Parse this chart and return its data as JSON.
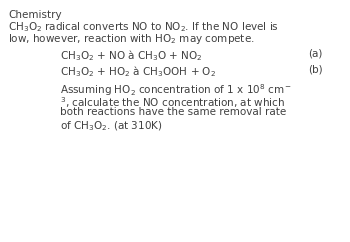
{
  "background_color": "#ffffff",
  "title_line1": "Chemistry",
  "title_line2": "CH$_3$O$_2$ radical converts NO to NO$_2$. If the NO level is",
  "title_line3": "low, however, reaction with HO$_2$ may compete.",
  "eq_a_left": "CH$_3$O$_2$ + NO à CH$_3$O + NO$_2$",
  "eq_a_label": "(a)",
  "eq_b_left": "CH$_3$O$_2$ + HO$_2$ à CH$_3$OOH + O$_2$",
  "eq_b_label": "(b)",
  "para_line1": "Assuming HO$_2$ concentration of 1 x 10$^8$ cm$^-$",
  "para_line2": "$^3$, calculate the NO concentration, at which",
  "para_line3": "both reactions have the same removal rate",
  "para_line4": "of CH$_3$O$_2$. (at 310K)",
  "font_size": 7.5,
  "text_color": "#404040",
  "fig_width": 3.5,
  "fig_height": 2.42,
  "dpi": 100
}
